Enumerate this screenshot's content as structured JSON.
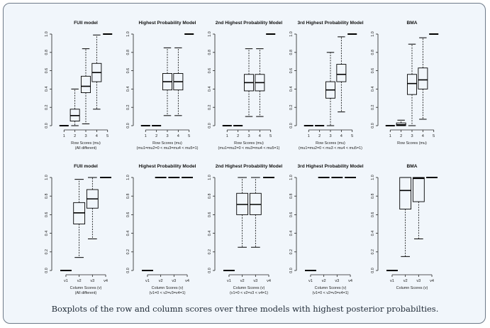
{
  "caption": "Boxplots of the row and column scores over three models with highest posterior probabilties.",
  "chart_data": [
    {
      "type": "box",
      "title": "FUll model",
      "xlabel": "Row Scores (mu)",
      "xlabel2": "(All different)",
      "ylim": [
        0,
        1
      ],
      "yticks": [
        "0.0",
        "0.2",
        "0.4",
        "0.6",
        "0.8",
        "1.0"
      ],
      "categories": [
        "1",
        "2",
        "3",
        "4",
        "5"
      ],
      "boxes": [
        {
          "min": 0,
          "q1": 0,
          "med": 0,
          "q3": 0,
          "max": 0
        },
        {
          "min": 0.0,
          "q1": 0.05,
          "med": 0.11,
          "q3": 0.18,
          "max": 0.4
        },
        {
          "min": 0.02,
          "q1": 0.36,
          "med": 0.43,
          "q3": 0.54,
          "max": 0.84
        },
        {
          "min": 0.18,
          "q1": 0.48,
          "med": 0.58,
          "q3": 0.68,
          "max": 0.99
        },
        {
          "min": 1,
          "q1": 1,
          "med": 1,
          "q3": 1,
          "max": 1
        }
      ]
    },
    {
      "type": "box",
      "title": "Highest Probability Model",
      "xlabel": "Row Scores (mu)",
      "xlabel2": "(mu1=mu2=0 < mu3=mu4 < mu5=1)",
      "ylim": [
        0,
        1
      ],
      "yticks": [
        "0.0",
        "0.2",
        "0.4",
        "0.6",
        "0.8",
        "1.0"
      ],
      "categories": [
        "1",
        "2",
        "3",
        "4",
        "5"
      ],
      "boxes": [
        {
          "min": 0,
          "q1": 0,
          "med": 0,
          "q3": 0,
          "max": 0
        },
        {
          "min": 0,
          "q1": 0,
          "med": 0,
          "q3": 0,
          "max": 0
        },
        {
          "min": 0.11,
          "q1": 0.39,
          "med": 0.48,
          "q3": 0.57,
          "max": 0.85
        },
        {
          "min": 0.11,
          "q1": 0.39,
          "med": 0.48,
          "q3": 0.57,
          "max": 0.85
        },
        {
          "min": 1,
          "q1": 1,
          "med": 1,
          "q3": 1,
          "max": 1
        }
      ]
    },
    {
      "type": "box",
      "title": "2nd Highest Probability Model",
      "xlabel": "Row Scores (mu)",
      "xlabel2": "(mu1=mu2=0 < mu3=mu4 < mu5=1)",
      "ylim": [
        0,
        1
      ],
      "yticks": [
        "0.0",
        "0.2",
        "0.4",
        "0.6",
        "0.8",
        "1.0"
      ],
      "categories": [
        "1",
        "2",
        "3",
        "4",
        "5"
      ],
      "boxes": [
        {
          "min": 0,
          "q1": 0,
          "med": 0,
          "q3": 0,
          "max": 0
        },
        {
          "min": 0,
          "q1": 0,
          "med": 0,
          "q3": 0,
          "max": 0
        },
        {
          "min": 0.1,
          "q1": 0.38,
          "med": 0.47,
          "q3": 0.56,
          "max": 0.84
        },
        {
          "min": 0.1,
          "q1": 0.38,
          "med": 0.47,
          "q3": 0.56,
          "max": 0.84
        },
        {
          "min": 1,
          "q1": 1,
          "med": 1,
          "q3": 1,
          "max": 1
        }
      ]
    },
    {
      "type": "box",
      "title": "3rd Highest Probability Model",
      "xlabel": "Row Scores (mu)",
      "xlabel2": "(mu1=mu2=0 < mu3 < mu4 < mu5=1)",
      "ylim": [
        0,
        1
      ],
      "yticks": [
        "0.0",
        "0.2",
        "0.4",
        "0.6",
        "0.8",
        "1.0"
      ],
      "categories": [
        "1",
        "2",
        "3",
        "4",
        "5"
      ],
      "boxes": [
        {
          "min": 0,
          "q1": 0,
          "med": 0,
          "q3": 0,
          "max": 0
        },
        {
          "min": 0,
          "q1": 0,
          "med": 0,
          "q3": 0,
          "max": 0
        },
        {
          "min": 0.0,
          "q1": 0.3,
          "med": 0.39,
          "q3": 0.48,
          "max": 0.8
        },
        {
          "min": 0.15,
          "q1": 0.48,
          "med": 0.56,
          "q3": 0.67,
          "max": 0.97
        },
        {
          "min": 1,
          "q1": 1,
          "med": 1,
          "q3": 1,
          "max": 1
        }
      ]
    },
    {
      "type": "box",
      "title": "BMA",
      "xlabel": "Row Scores (mu)",
      "xlabel2": "",
      "ylim": [
        0,
        1
      ],
      "yticks": [
        "0.0",
        "0.2",
        "0.4",
        "0.6",
        "0.8",
        "1.0"
      ],
      "categories": [
        "1",
        "2",
        "3",
        "4",
        "5"
      ],
      "boxes": [
        {
          "min": 0,
          "q1": 0,
          "med": 0,
          "q3": 0,
          "max": 0
        },
        {
          "min": 0,
          "q1": 0.0,
          "med": 0.01,
          "q3": 0.03,
          "max": 0.06
        },
        {
          "min": 0.0,
          "q1": 0.34,
          "med": 0.46,
          "q3": 0.56,
          "max": 0.89
        },
        {
          "min": 0.07,
          "q1": 0.4,
          "med": 0.5,
          "q3": 0.63,
          "max": 0.96
        },
        {
          "min": 1,
          "q1": 1,
          "med": 1,
          "q3": 1,
          "max": 1
        }
      ]
    },
    {
      "type": "box",
      "title": "FUll model",
      "xlabel": "Column Scores (v)",
      "xlabel2": "(All different)",
      "ylim": [
        0,
        1
      ],
      "yticks": [
        "0.0",
        "0.2",
        "0.4",
        "0.6",
        "0.8",
        "1.0"
      ],
      "categories": [
        "v1",
        "v2",
        "v3",
        "v4"
      ],
      "boxes": [
        {
          "min": 0,
          "q1": 0,
          "med": 0,
          "q3": 0,
          "max": 0
        },
        {
          "min": 0.14,
          "q1": 0.5,
          "med": 0.62,
          "q3": 0.73,
          "max": 0.98
        },
        {
          "min": 0.34,
          "q1": 0.67,
          "med": 0.77,
          "q3": 0.87,
          "max": 1.0
        },
        {
          "min": 1,
          "q1": 1,
          "med": 1,
          "q3": 1,
          "max": 1
        }
      ]
    },
    {
      "type": "box",
      "title": "Highest Probability Model",
      "xlabel": "Column Scores (v)",
      "xlabel2": "(v1=0 < v2=v3=v4=1)",
      "ylim": [
        0,
        1
      ],
      "yticks": [
        "0.0",
        "0.2",
        "0.4",
        "0.6",
        "0.8",
        "1.0"
      ],
      "categories": [
        "v1",
        "v2",
        "v3",
        "v4"
      ],
      "boxes": [
        {
          "min": 0,
          "q1": 0,
          "med": 0,
          "q3": 0,
          "max": 0
        },
        {
          "min": 1,
          "q1": 1,
          "med": 1,
          "q3": 1,
          "max": 1
        },
        {
          "min": 1,
          "q1": 1,
          "med": 1,
          "q3": 1,
          "max": 1
        },
        {
          "min": 1,
          "q1": 1,
          "med": 1,
          "q3": 1,
          "max": 1
        }
      ]
    },
    {
      "type": "box",
      "title": "2nd Highest Probability Model",
      "xlabel": "Column Scores (v)",
      "xlabel2": "(v1=0 < v2=v3 < v4=1)",
      "ylim": [
        0,
        1
      ],
      "yticks": [
        "0.0",
        "0.2",
        "0.4",
        "0.6",
        "0.8",
        "1.0"
      ],
      "categories": [
        "v1",
        "v2",
        "v3",
        "v4"
      ],
      "boxes": [
        {
          "min": 0,
          "q1": 0,
          "med": 0,
          "q3": 0,
          "max": 0
        },
        {
          "min": 0.25,
          "q1": 0.6,
          "med": 0.71,
          "q3": 0.83,
          "max": 1.0
        },
        {
          "min": 0.25,
          "q1": 0.6,
          "med": 0.71,
          "q3": 0.83,
          "max": 1.0
        },
        {
          "min": 1,
          "q1": 1,
          "med": 1,
          "q3": 1,
          "max": 1
        }
      ]
    },
    {
      "type": "box",
      "title": "3rd Highest Probability Model",
      "xlabel": "Column Scores (v)",
      "xlabel2": "(v1=0 < v2=v3=v4=1)",
      "ylim": [
        0,
        1
      ],
      "yticks": [
        "0.0",
        "0.2",
        "0.4",
        "0.6",
        "0.8",
        "1.0"
      ],
      "categories": [
        "v1",
        "v2",
        "v3",
        "v4"
      ],
      "boxes": [
        {
          "min": 0,
          "q1": 0,
          "med": 0,
          "q3": 0,
          "max": 0
        },
        {
          "min": 1,
          "q1": 1,
          "med": 1,
          "q3": 1,
          "max": 1
        },
        {
          "min": 1,
          "q1": 1,
          "med": 1,
          "q3": 1,
          "max": 1
        },
        {
          "min": 1,
          "q1": 1,
          "med": 1,
          "q3": 1,
          "max": 1
        }
      ]
    },
    {
      "type": "box",
      "title": "BMA",
      "xlabel": "Column Scores (v)",
      "xlabel2": "",
      "ylim": [
        0,
        1
      ],
      "yticks": [
        "0.0",
        "0.2",
        "0.4",
        "0.6",
        "0.8",
        "1.0"
      ],
      "categories": [
        "v1",
        "v2",
        "v3",
        "v4"
      ],
      "boxes": [
        {
          "min": 0,
          "q1": 0,
          "med": 0,
          "q3": 0,
          "max": 0
        },
        {
          "min": 0.15,
          "q1": 0.66,
          "med": 0.86,
          "q3": 1.0,
          "max": 1.0
        },
        {
          "min": 0.34,
          "q1": 0.74,
          "med": 0.99,
          "q3": 1.0,
          "max": 1.0
        },
        {
          "min": 1,
          "q1": 1,
          "med": 1,
          "q3": 1,
          "max": 1
        }
      ]
    }
  ]
}
